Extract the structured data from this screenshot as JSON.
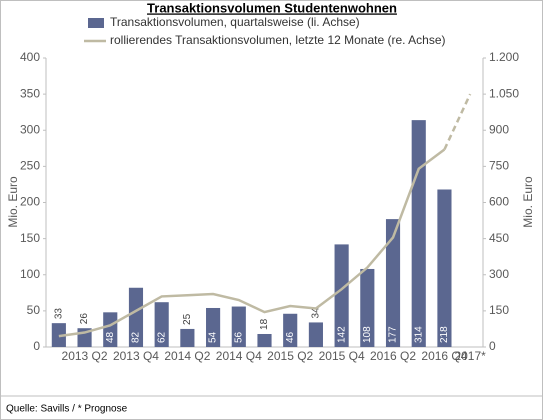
{
  "chart_data": {
    "type": "bar",
    "title": "Transaktionsvolumen Studentenwohnen",
    "source": "Quelle: Savills / * Prognose",
    "ylabel": "Mio. Euro",
    "y2label": "Mio. Euro",
    "categories": [
      null,
      "2013 Q2",
      null,
      "2013 Q4",
      null,
      "2014 Q2",
      null,
      "2014 Q4",
      null,
      "2015 Q2",
      null,
      "2015 Q4",
      null,
      "2016 Q2",
      null,
      "2016 Q4",
      "2017*"
    ],
    "series": [
      {
        "name": "Transaktionsvolumen, quartalsweise (li. Achse)",
        "type": "bar",
        "color": "#5b6790",
        "values": [
          33,
          26,
          48,
          82,
          62,
          25,
          54,
          56,
          18,
          46,
          34,
          142,
          108,
          177,
          314,
          218,
          null
        ]
      },
      {
        "name": "rollierendes Transaktionsvolumen, letzte 12 Monate (re. Achse)",
        "type": "line",
        "axis": "y2",
        "color": "#bfbaa3",
        "values": [
          45,
          60,
          90,
          150,
          210,
          215,
          220,
          195,
          145,
          170,
          160,
          240,
          330,
          455,
          740,
          820,
          1050
        ]
      }
    ],
    "ylim": [
      0,
      400
    ],
    "yticks": [
      0,
      50,
      100,
      150,
      200,
      250,
      300,
      350,
      400
    ],
    "y2lim": [
      0,
      1200
    ],
    "y2ticks": [
      0,
      150,
      300,
      450,
      600,
      750,
      900,
      {
        "value": 1050,
        "label": "1.050"
      },
      {
        "value": 1200,
        "label": "1.200"
      }
    ]
  }
}
